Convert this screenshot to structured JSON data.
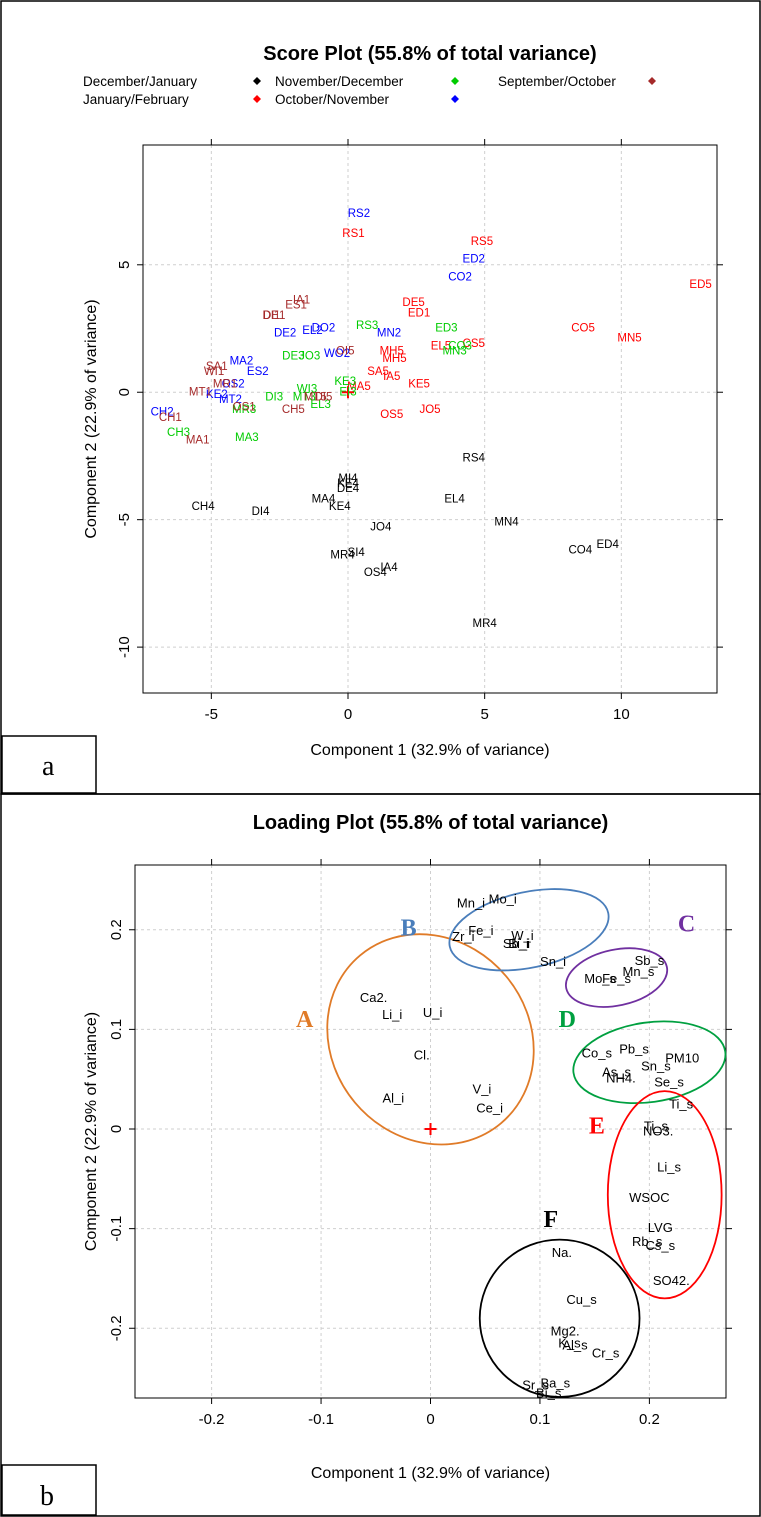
{
  "chart_data": [
    {
      "type": "scatter",
      "panel_label": "a",
      "title": "Score Plot (55.8% of total variance)",
      "xlabel": "Component 1 (32.9% of variance)",
      "ylabel": "Component 2 (22.9% of variance)",
      "xlim": [
        -7.5,
        13.5
      ],
      "ylim": [
        -11.8,
        9.7
      ],
      "xticks": [
        -5,
        0,
        5,
        10
      ],
      "yticks": [
        -10,
        -5,
        0,
        5
      ],
      "grid": true,
      "legend_position": "top",
      "origin_marker": [
        0,
        0
      ],
      "series": [
        {
          "name": "December/January",
          "color": "#000000",
          "points": [
            {
              "label": "CH4",
              "x": -5.3,
              "y": -4.5
            },
            {
              "label": "DI4",
              "x": -3.2,
              "y": -4.7
            },
            {
              "label": "MA4",
              "x": -0.9,
              "y": -4.2
            },
            {
              "label": "MI4",
              "x": 0.0,
              "y": -3.4
            },
            {
              "label": "KE4",
              "x": 0.0,
              "y": -3.6
            },
            {
              "label": "DE4",
              "x": 0.0,
              "y": -3.8
            },
            {
              "label": "KE4",
              "x": -0.3,
              "y": -4.5
            },
            {
              "label": "RS4",
              "x": 4.6,
              "y": -2.6
            },
            {
              "label": "EL4",
              "x": 3.9,
              "y": -4.2
            },
            {
              "label": "MN4",
              "x": 5.8,
              "y": -5.1
            },
            {
              "label": "JO4",
              "x": 1.2,
              "y": -5.3
            },
            {
              "label": "SI4",
              "x": 0.3,
              "y": -6.3
            },
            {
              "label": "MR4",
              "x": -0.2,
              "y": -6.4
            },
            {
              "label": "IA4",
              "x": 1.5,
              "y": -6.9
            },
            {
              "label": "OS4",
              "x": 1.0,
              "y": -7.1
            },
            {
              "label": "ED4",
              "x": 9.5,
              "y": -6.0
            },
            {
              "label": "CO4",
              "x": 8.5,
              "y": -6.2
            },
            {
              "label": "MR4",
              "x": 5.0,
              "y": -9.1
            }
          ]
        },
        {
          "name": "January/February",
          "color": "#ff0000",
          "points": [
            {
              "label": "RS1",
              "x": 0.2,
              "y": 6.2
            },
            {
              "label": "RS5",
              "x": 4.9,
              "y": 5.9
            },
            {
              "label": "ED5",
              "x": 12.9,
              "y": 4.2
            },
            {
              "label": "DE5",
              "x": 2.4,
              "y": 3.5
            },
            {
              "label": "ED1",
              "x": 2.6,
              "y": 3.1
            },
            {
              "label": "CO5",
              "x": 8.6,
              "y": 2.5
            },
            {
              "label": "MN5",
              "x": 10.3,
              "y": 2.1
            },
            {
              "label": "EL5",
              "x": 3.4,
              "y": 1.8
            },
            {
              "label": "CS5",
              "x": 4.6,
              "y": 1.9
            },
            {
              "label": "MH5",
              "x": 1.6,
              "y": 1.6
            },
            {
              "label": "MH5",
              "x": 1.7,
              "y": 1.3
            },
            {
              "label": "SA5",
              "x": 1.1,
              "y": 0.8
            },
            {
              "label": "IA5",
              "x": 1.6,
              "y": 0.6
            },
            {
              "label": "KE5",
              "x": 2.6,
              "y": 0.3
            },
            {
              "label": "MA5",
              "x": 0.4,
              "y": 0.2
            },
            {
              "label": "OS5",
              "x": 1.6,
              "y": -0.9
            },
            {
              "label": "JO5",
              "x": 3.0,
              "y": -0.7
            }
          ]
        },
        {
          "name": "November/December",
          "color": "#00cc00",
          "points": [
            {
              "label": "RS3",
              "x": 0.7,
              "y": 2.6
            },
            {
              "label": "ED3",
              "x": 3.6,
              "y": 2.5
            },
            {
              "label": "MN3",
              "x": 3.9,
              "y": 1.6
            },
            {
              "label": "CO3",
              "x": 4.1,
              "y": 1.8
            },
            {
              "label": "KE3",
              "x": -0.1,
              "y": 0.4
            },
            {
              "label": "EI3",
              "x": 0.0,
              "y": 0.0
            },
            {
              "label": "EL3",
              "x": -1.0,
              "y": -0.5
            },
            {
              "label": "WI3",
              "x": -1.5,
              "y": 0.1
            },
            {
              "label": "MT3",
              "x": -1.6,
              "y": -0.2
            },
            {
              "label": "DI3",
              "x": -2.7,
              "y": -0.2
            },
            {
              "label": "MR3",
              "x": -3.8,
              "y": -0.7
            },
            {
              "label": "DE3",
              "x": -2.0,
              "y": 1.4
            },
            {
              "label": "JO3",
              "x": -1.4,
              "y": 1.4
            },
            {
              "label": "CH3",
              "x": -6.2,
              "y": -1.6
            },
            {
              "label": "MA3",
              "x": -3.7,
              "y": -1.8
            }
          ]
        },
        {
          "name": "October/November",
          "color": "#0000ff",
          "points": [
            {
              "label": "RS2",
              "x": 0.4,
              "y": 7.0
            },
            {
              "label": "ED2",
              "x": 4.6,
              "y": 5.2
            },
            {
              "label": "CO2",
              "x": 4.1,
              "y": 4.5
            },
            {
              "label": "MN2",
              "x": 1.5,
              "y": 2.3
            },
            {
              "label": "EL2",
              "x": -1.3,
              "y": 2.4
            },
            {
              "label": "DE2",
              "x": -2.3,
              "y": 2.3
            },
            {
              "label": "DO2",
              "x": -0.9,
              "y": 2.5
            },
            {
              "label": "WO2",
              "x": -0.4,
              "y": 1.5
            },
            {
              "label": "MA2",
              "x": -3.9,
              "y": 1.2
            },
            {
              "label": "ES2",
              "x": -3.3,
              "y": 0.8
            },
            {
              "label": "OS2",
              "x": -4.2,
              "y": 0.3
            },
            {
              "label": "MT2",
              "x": -4.3,
              "y": -0.3
            },
            {
              "label": "KE2",
              "x": -4.8,
              "y": -0.1
            },
            {
              "label": "CH2",
              "x": -6.8,
              "y": -0.8
            }
          ]
        },
        {
          "name": "September/October",
          "color": "#a52a2a",
          "points": [
            {
              "label": "IA1",
              "x": -1.7,
              "y": 3.6
            },
            {
              "label": "ES1",
              "x": -1.9,
              "y": 3.4
            },
            {
              "label": "DI1",
              "x": -2.8,
              "y": 3.0
            },
            {
              "label": "DE1",
              "x": -2.7,
              "y": 3.0
            },
            {
              "label": "SA1",
              "x": -4.8,
              "y": 1.0
            },
            {
              "label": "WI1",
              "x": -4.9,
              "y": 0.8
            },
            {
              "label": "MR1",
              "x": -4.5,
              "y": 0.3
            },
            {
              "label": "MT1",
              "x": -5.4,
              "y": 0.0
            },
            {
              "label": "OS1",
              "x": -3.8,
              "y": -0.6
            },
            {
              "label": "CH5",
              "x": -2.0,
              "y": -0.7
            },
            {
              "label": "MT5",
              "x": -1.2,
              "y": -0.2
            },
            {
              "label": "DI5",
              "x": -0.9,
              "y": -0.2
            },
            {
              "label": "OI5",
              "x": -0.1,
              "y": 1.6
            },
            {
              "label": "CH1",
              "x": -6.5,
              "y": -1.0
            },
            {
              "label": "MA1",
              "x": -5.5,
              "y": -1.9
            }
          ]
        }
      ]
    },
    {
      "type": "scatter",
      "panel_label": "b",
      "title": "Loading Plot (55.8% of total variance)",
      "xlabel": "Component 1 (32.9% of variance)",
      "ylabel": "Component 2 (22.9% of variance)",
      "xlim": [
        -0.27,
        0.27
      ],
      "ylim": [
        -0.27,
        0.265
      ],
      "xticks": [
        -0.2,
        -0.1,
        0.0,
        0.1,
        0.2
      ],
      "yticks": [
        -0.2,
        -0.1,
        0.0,
        0.1,
        0.2
      ],
      "grid": true,
      "origin_marker": [
        0,
        0
      ],
      "groups": [
        {
          "label": "A",
          "color": "#e07b28",
          "cx": 0.0,
          "cy": 0.09,
          "rx": 0.09,
          "ry": 0.11,
          "angle": -40,
          "label_x": -0.115,
          "label_y": 0.108
        },
        {
          "label": "B",
          "color": "#4a7ebb",
          "cx": 0.09,
          "cy": 0.2,
          "rx": 0.074,
          "ry": 0.038,
          "angle": -12,
          "label_x": -0.02,
          "label_y": 0.2
        },
        {
          "label": "C",
          "color": "#7030a0",
          "cx": 0.17,
          "cy": 0.152,
          "rx": 0.047,
          "ry": 0.028,
          "angle": -12,
          "label_x": 0.234,
          "label_y": 0.204
        },
        {
          "label": "D",
          "color": "#00a040",
          "cx": 0.2,
          "cy": 0.067,
          "rx": 0.07,
          "ry": 0.04,
          "angle": -8,
          "label_x": 0.125,
          "label_y": 0.108
        },
        {
          "label": "E",
          "color": "#ff0000",
          "cx": 0.214,
          "cy": -0.066,
          "rx": 0.052,
          "ry": 0.104,
          "angle": 0,
          "label_x": 0.152,
          "label_y": 0.001
        },
        {
          "label": "F",
          "color": "#000000",
          "cx": 0.118,
          "cy": -0.19,
          "rx": 0.073,
          "ry": 0.079,
          "angle": 0,
          "label_x": 0.11,
          "label_y": -0.093
        }
      ],
      "points": [
        {
          "label": "Mo_i",
          "x": 0.066,
          "y": 0.23
        },
        {
          "label": "Mn_i",
          "x": 0.037,
          "y": 0.226
        },
        {
          "label": "Fe_i",
          "x": 0.046,
          "y": 0.198
        },
        {
          "label": "Zr_i",
          "x": 0.03,
          "y": 0.192
        },
        {
          "label": "W_i",
          "x": 0.084,
          "y": 0.193
        },
        {
          "label": "Sb_i",
          "x": 0.078,
          "y": 0.185
        },
        {
          "label": "Bi_i",
          "x": 0.081,
          "y": 0.185
        },
        {
          "label": "Sn_i",
          "x": 0.112,
          "y": 0.167
        },
        {
          "label": "Sb_s",
          "x": 0.2,
          "y": 0.168
        },
        {
          "label": "Mn_s",
          "x": 0.19,
          "y": 0.157
        },
        {
          "label": "Mo_s",
          "x": 0.155,
          "y": 0.15
        },
        {
          "label": "Fe_s",
          "x": 0.17,
          "y": 0.15
        },
        {
          "label": "Ca2.",
          "x": -0.052,
          "y": 0.131
        },
        {
          "label": "Li_i",
          "x": -0.035,
          "y": 0.114
        },
        {
          "label": "U_i",
          "x": 0.002,
          "y": 0.116
        },
        {
          "label": "Cl.",
          "x": -0.008,
          "y": 0.073
        },
        {
          "label": "V_i",
          "x": 0.047,
          "y": 0.039
        },
        {
          "label": "Al_i",
          "x": -0.034,
          "y": 0.03
        },
        {
          "label": "Ce_i",
          "x": 0.054,
          "y": 0.02
        },
        {
          "label": "Co_s",
          "x": 0.152,
          "y": 0.075
        },
        {
          "label": "Pb_s",
          "x": 0.186,
          "y": 0.079
        },
        {
          "label": "PM10",
          "x": 0.23,
          "y": 0.07
        },
        {
          "label": "Sn_s",
          "x": 0.206,
          "y": 0.062
        },
        {
          "label": "As_s",
          "x": 0.17,
          "y": 0.056
        },
        {
          "label": "NH4.",
          "x": 0.174,
          "y": 0.05
        },
        {
          "label": "Se_s",
          "x": 0.218,
          "y": 0.046
        },
        {
          "label": "Ti_s",
          "x": 0.229,
          "y": 0.024
        },
        {
          "label": "Ti_s",
          "x": 0.206,
          "y": 0.002
        },
        {
          "label": "NO3.",
          "x": 0.208,
          "y": -0.003
        },
        {
          "label": "Li_s",
          "x": 0.218,
          "y": -0.039
        },
        {
          "label": "WSOC",
          "x": 0.2,
          "y": -0.07
        },
        {
          "label": "LVG",
          "x": 0.21,
          "y": -0.1
        },
        {
          "label": "Rb_s",
          "x": 0.198,
          "y": -0.114
        },
        {
          "label": "Cs_s",
          "x": 0.21,
          "y": -0.118
        },
        {
          "label": "SO42.",
          "x": 0.22,
          "y": -0.153
        },
        {
          "label": "Na.",
          "x": 0.12,
          "y": -0.125
        },
        {
          "label": "Cu_s",
          "x": 0.138,
          "y": -0.172
        },
        {
          "label": "Mg2.",
          "x": 0.123,
          "y": -0.204
        },
        {
          "label": "Al_s",
          "x": 0.132,
          "y": -0.218
        },
        {
          "label": "K_s",
          "x": 0.127,
          "y": -0.216
        },
        {
          "label": "Cr_s",
          "x": 0.16,
          "y": -0.226
        },
        {
          "label": "Sr_s",
          "x": 0.096,
          "y": -0.258
        },
        {
          "label": "Ba_s",
          "x": 0.114,
          "y": -0.256
        },
        {
          "label": "Bi_s",
          "x": 0.108,
          "y": -0.266
        }
      ]
    }
  ]
}
